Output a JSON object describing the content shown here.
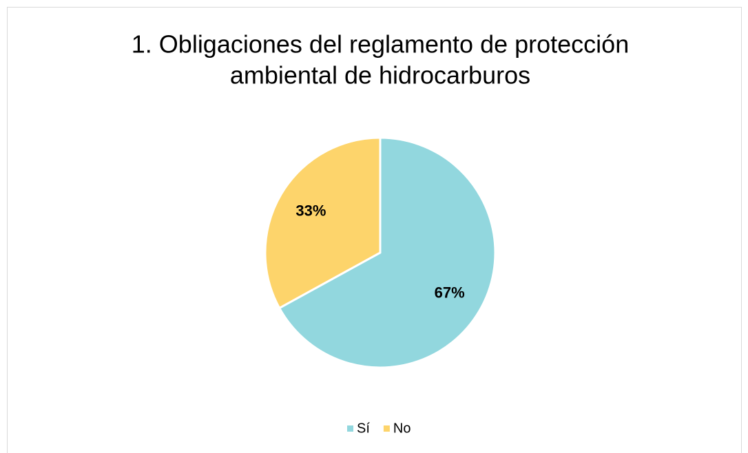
{
  "chart_data": {
    "type": "pie",
    "title": [
      "1. Obligaciones del reglamento de protección",
      "ambiental de hidrocarburos"
    ],
    "categories": [
      "Sí",
      "No"
    ],
    "values": [
      67,
      33
    ],
    "value_labels": [
      "67%",
      "33%"
    ],
    "colors": [
      "#92d7de",
      "#fdd46b"
    ],
    "legend": "bottom"
  }
}
